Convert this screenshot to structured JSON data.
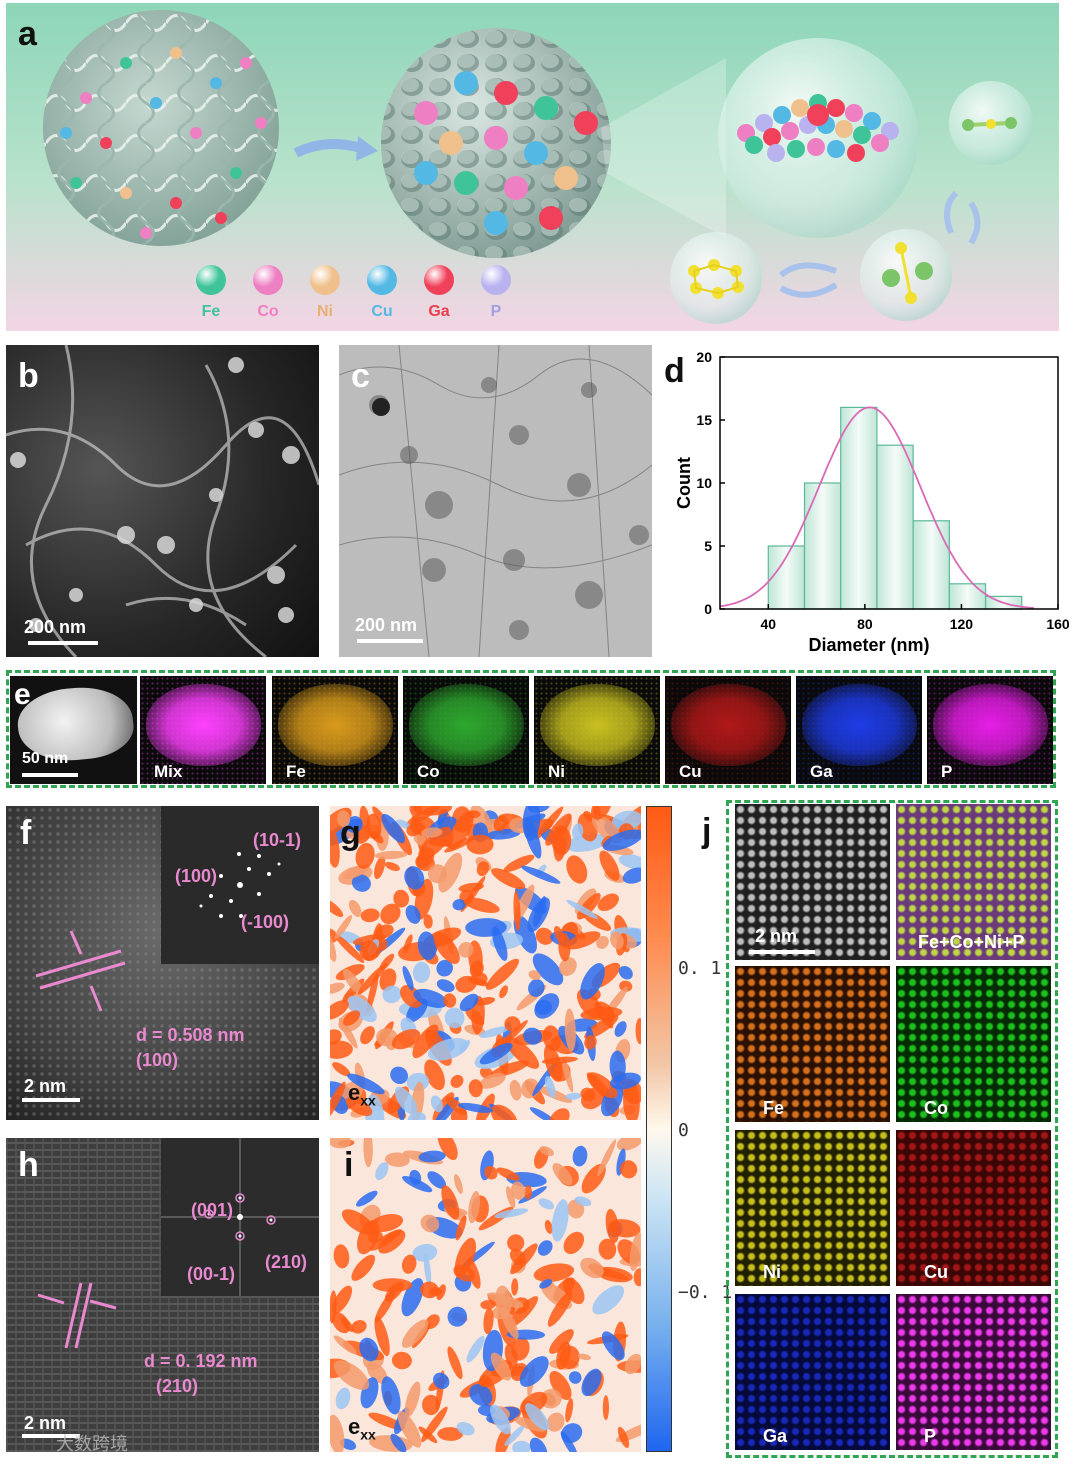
{
  "panels": {
    "a": "a",
    "b": "b",
    "c": "c",
    "d": "d",
    "e": "e",
    "f": "f",
    "g": "g",
    "h": "h",
    "i": "i",
    "j": "j"
  },
  "legend_a": [
    {
      "el": "Fe",
      "color": "#3fc49a",
      "text": "#3fc49a"
    },
    {
      "el": "Co",
      "color": "#ee7fc2",
      "text": "#ee7fc2"
    },
    {
      "el": "Ni",
      "color": "#f0c08c",
      "text": "#e6b070"
    },
    {
      "el": "Cu",
      "color": "#53b8e4",
      "text": "#53b8e4"
    },
    {
      "el": "Ga",
      "color": "#f0405a",
      "text": "#e8404e"
    },
    {
      "el": "P",
      "color": "#b8b2ef",
      "text": "#a49ee4"
    }
  ],
  "scalebars": {
    "b": "200 nm",
    "c": "200 nm",
    "e": "50 nm",
    "f": "2 nm",
    "h": "2 nm",
    "j": "2 nm"
  },
  "chart_data": {
    "type": "bar",
    "xlabel": "Diameter (nm)",
    "ylabel": "Count",
    "xlim": [
      20,
      160
    ],
    "ylim": [
      0,
      20
    ],
    "xticks": [
      40,
      80,
      120,
      160
    ],
    "yticks": [
      0,
      5,
      10,
      15,
      20
    ],
    "bin_width": 15,
    "bins": [
      47.5,
      62.5,
      77.5,
      92.5,
      107.5,
      122.5,
      137.5
    ],
    "values": [
      5,
      10,
      16,
      13,
      7,
      2,
      1
    ],
    "fit_curve": "gaussian",
    "fit_mean": 82,
    "fit_sigma": 21,
    "fit_peak": 16
  },
  "eds_e": [
    "Mix",
    "Fe",
    "Co",
    "Ni",
    "Cu",
    "Ga",
    "P"
  ],
  "f_text": {
    "d": "d = 0.508 nm",
    "plane": "(100)",
    "spots": [
      "(10-1)",
      "(100)",
      "(-100)"
    ]
  },
  "h_text": {
    "d": "d = 0. 192 nm",
    "plane": "(210)",
    "spots": [
      "(001)",
      "(00-1)",
      "(210)"
    ]
  },
  "strain_label": "e",
  "strain_sub": "xx",
  "colorbar_ticks": [
    "0. 1",
    "0",
    "−0. 1"
  ],
  "j_maps": [
    "Fe+Co+Ni+P",
    "Fe",
    "Co",
    "Ni",
    "Cu",
    "Ga",
    "P"
  ],
  "watermark": "大数跨境"
}
